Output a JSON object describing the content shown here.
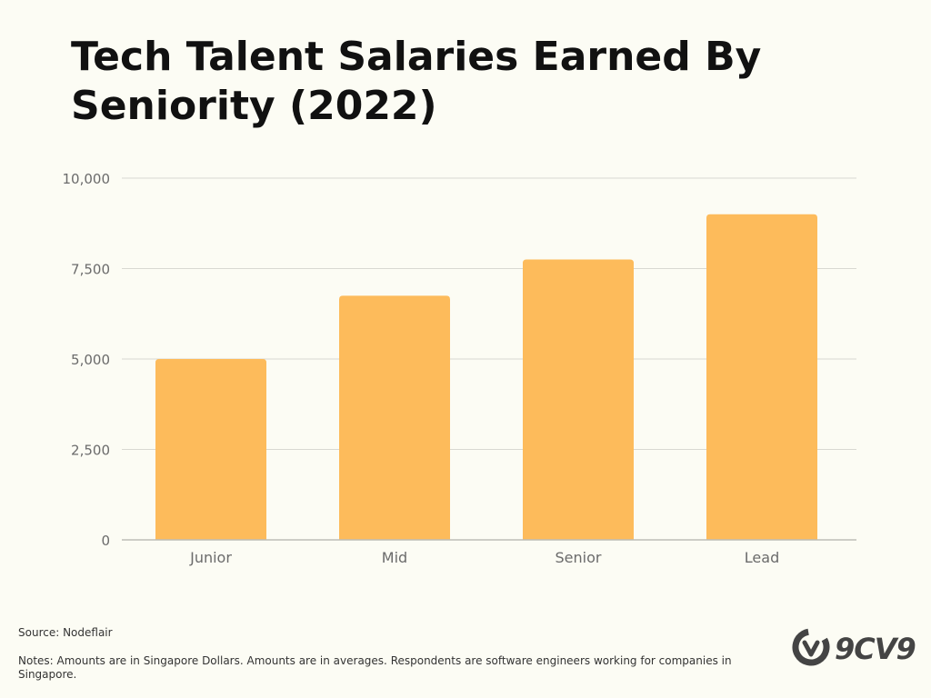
{
  "title": "Tech Talent Salaries Earned By Seniority (2022)",
  "source": "Source: Nodeflair",
  "notes": "Notes: Amounts are in Singapore Dollars. Amounts are in averages. Respondents are software engineers working for companies in Singapore.",
  "logo": {
    "text": "9CV9",
    "icon": "9cv9-logo-icon"
  },
  "colors": {
    "background": "#fcfcf4",
    "bar": "#fdbb5b",
    "grid": "#d9d9d2",
    "axis_text": "#6b6b6b",
    "title": "#111111"
  },
  "chart_data": {
    "type": "bar",
    "categories": [
      "Junior",
      "Mid",
      "Senior",
      "Lead"
    ],
    "values": [
      5000,
      6750,
      7750,
      9000
    ],
    "ylim": [
      0,
      10000
    ],
    "yticks": [
      0,
      2500,
      5000,
      7500,
      10000
    ],
    "ytick_labels": [
      "0",
      "2,500",
      "5,000",
      "7,500",
      "10,000"
    ],
    "grid": true,
    "legend": "none"
  }
}
